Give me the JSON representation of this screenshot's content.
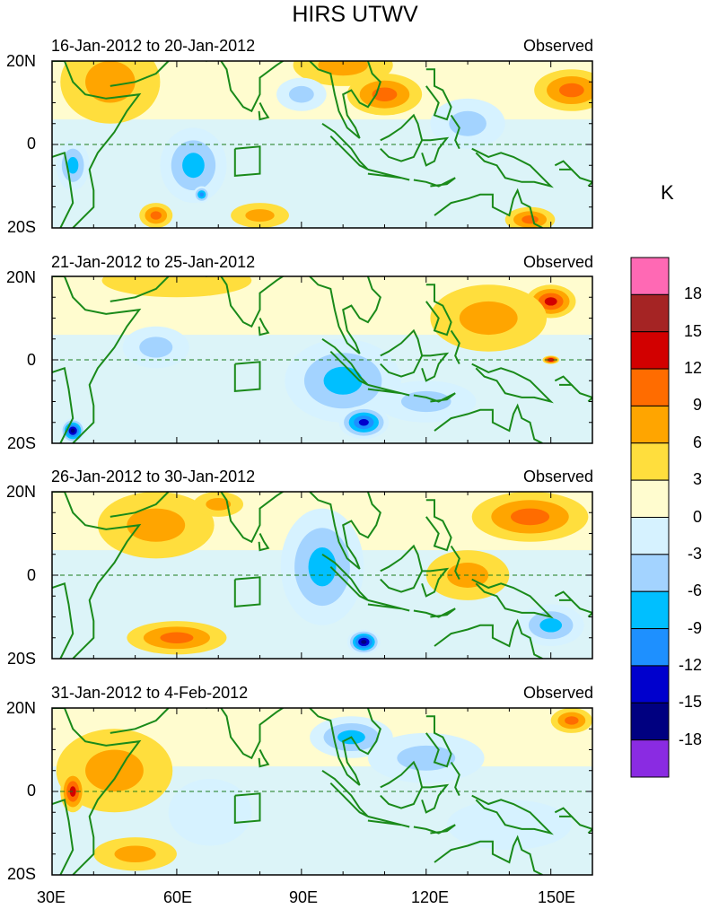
{
  "chart_data": {
    "type": "heatmap",
    "title": "HIRS UTWV",
    "units": "K",
    "lon_ticks": [
      "30E",
      "60E",
      "90E",
      "120E",
      "150E"
    ],
    "lat_ticks": [
      "20N",
      "0",
      "20S"
    ],
    "lon_range": [
      30,
      160
    ],
    "lat_range": [
      -20,
      20
    ],
    "colorbar": {
      "levels": [
        "-18",
        "-15",
        "-12",
        "-9",
        "-6",
        "-3",
        "0",
        "3",
        "6",
        "9",
        "12",
        "15",
        "18"
      ],
      "colors": [
        "#8a2be2",
        "#000080",
        "#0000cd",
        "#1e90ff",
        "#00bfff",
        "#a3d3ff",
        "#d6f2ff",
        "#fffccf",
        "#ffde3d",
        "#ffa500",
        "#ff6c00",
        "#d20000",
        "#a52424",
        "#ff69b4"
      ]
    },
    "panels": [
      {
        "period": "16-Jan-2012 to 20-Jan-2012",
        "label": "Observed",
        "features": [
          {
            "lon": 44,
            "lat": 15,
            "value": 6,
            "sx": 12,
            "sy": 10
          },
          {
            "lon": 110,
            "lat": 12,
            "value": 9,
            "sx": 9,
            "sy": 5
          },
          {
            "lon": 155,
            "lat": 13,
            "value": 9,
            "sx": 9,
            "sy": 5
          },
          {
            "lon": 100,
            "lat": 19,
            "value": 6,
            "sx": 12,
            "sy": 5
          },
          {
            "lon": 64,
            "lat": -5,
            "value": -9,
            "sx": 8,
            "sy": 9
          },
          {
            "lon": 66,
            "lat": -12,
            "value": -12,
            "sx": 2,
            "sy": 2
          },
          {
            "lon": 90,
            "lat": 12,
            "value": -6,
            "sx": 6,
            "sy": 4
          },
          {
            "lon": 130,
            "lat": 5,
            "value": -6,
            "sx": 9,
            "sy": 6
          },
          {
            "lon": 35,
            "lat": -5,
            "value": -9,
            "sx": 4,
            "sy": 6
          },
          {
            "lon": 55,
            "lat": -17,
            "value": 9,
            "sx": 4,
            "sy": 3
          },
          {
            "lon": 80,
            "lat": -17,
            "value": 6,
            "sx": 7,
            "sy": 3
          },
          {
            "lon": 145,
            "lat": -18,
            "value": 9,
            "sx": 6,
            "sy": 3
          }
        ]
      },
      {
        "period": "21-Jan-2012 to 25-Jan-2012",
        "label": "Observed",
        "features": [
          {
            "lon": 150,
            "lat": 14,
            "value": 12,
            "sx": 6,
            "sy": 4
          },
          {
            "lon": 135,
            "lat": 10,
            "value": 6,
            "sx": 14,
            "sy": 8
          },
          {
            "lon": 60,
            "lat": 19,
            "value": 3,
            "sx": 18,
            "sy": 4
          },
          {
            "lon": 100,
            "lat": -5,
            "value": -9,
            "sx": 14,
            "sy": 10
          },
          {
            "lon": 105,
            "lat": -15,
            "value": -15,
            "sx": 6,
            "sy": 4
          },
          {
            "lon": 55,
            "lat": 3,
            "value": -6,
            "sx": 8,
            "sy": 5
          },
          {
            "lon": 35,
            "lat": -17,
            "value": -18,
            "sx": 3,
            "sy": 3
          },
          {
            "lon": 150,
            "lat": 0,
            "value": 15,
            "sx": 2,
            "sy": 1
          },
          {
            "lon": 120,
            "lat": -10,
            "value": -6,
            "sx": 12,
            "sy": 5
          }
        ]
      },
      {
        "period": "26-Jan-2012 to 30-Jan-2012",
        "label": "Observed",
        "features": [
          {
            "lon": 145,
            "lat": 14,
            "value": 9,
            "sx": 14,
            "sy": 6
          },
          {
            "lon": 55,
            "lat": 12,
            "value": 6,
            "sx": 14,
            "sy": 8
          },
          {
            "lon": 60,
            "lat": -15,
            "value": 9,
            "sx": 12,
            "sy": 4
          },
          {
            "lon": 95,
            "lat": 2,
            "value": -9,
            "sx": 10,
            "sy": 14
          },
          {
            "lon": 105,
            "lat": -16,
            "value": -18,
            "sx": 4,
            "sy": 3
          },
          {
            "lon": 130,
            "lat": 0,
            "value": 6,
            "sx": 10,
            "sy": 6
          },
          {
            "lon": 150,
            "lat": -12,
            "value": -9,
            "sx": 8,
            "sy": 5
          },
          {
            "lon": 70,
            "lat": 17,
            "value": 6,
            "sx": 6,
            "sy": 3
          }
        ]
      },
      {
        "period": "31-Jan-2012 to 4-Feb-2012",
        "label": "Observed",
        "features": [
          {
            "lon": 102,
            "lat": 13,
            "value": -9,
            "sx": 10,
            "sy": 5
          },
          {
            "lon": 45,
            "lat": 5,
            "value": 6,
            "sx": 14,
            "sy": 10
          },
          {
            "lon": 35,
            "lat": 0,
            "value": 12,
            "sx": 3,
            "sy": 5
          },
          {
            "lon": 155,
            "lat": 17,
            "value": 9,
            "sx": 5,
            "sy": 3
          },
          {
            "lon": 120,
            "lat": 8,
            "value": -6,
            "sx": 14,
            "sy": 6
          },
          {
            "lon": 68,
            "lat": -5,
            "value": -3,
            "sx": 10,
            "sy": 8
          },
          {
            "lon": 140,
            "lat": -8,
            "value": -3,
            "sx": 15,
            "sy": 6
          },
          {
            "lon": 50,
            "lat": -15,
            "value": 6,
            "sx": 10,
            "sy": 4
          }
        ]
      }
    ]
  }
}
